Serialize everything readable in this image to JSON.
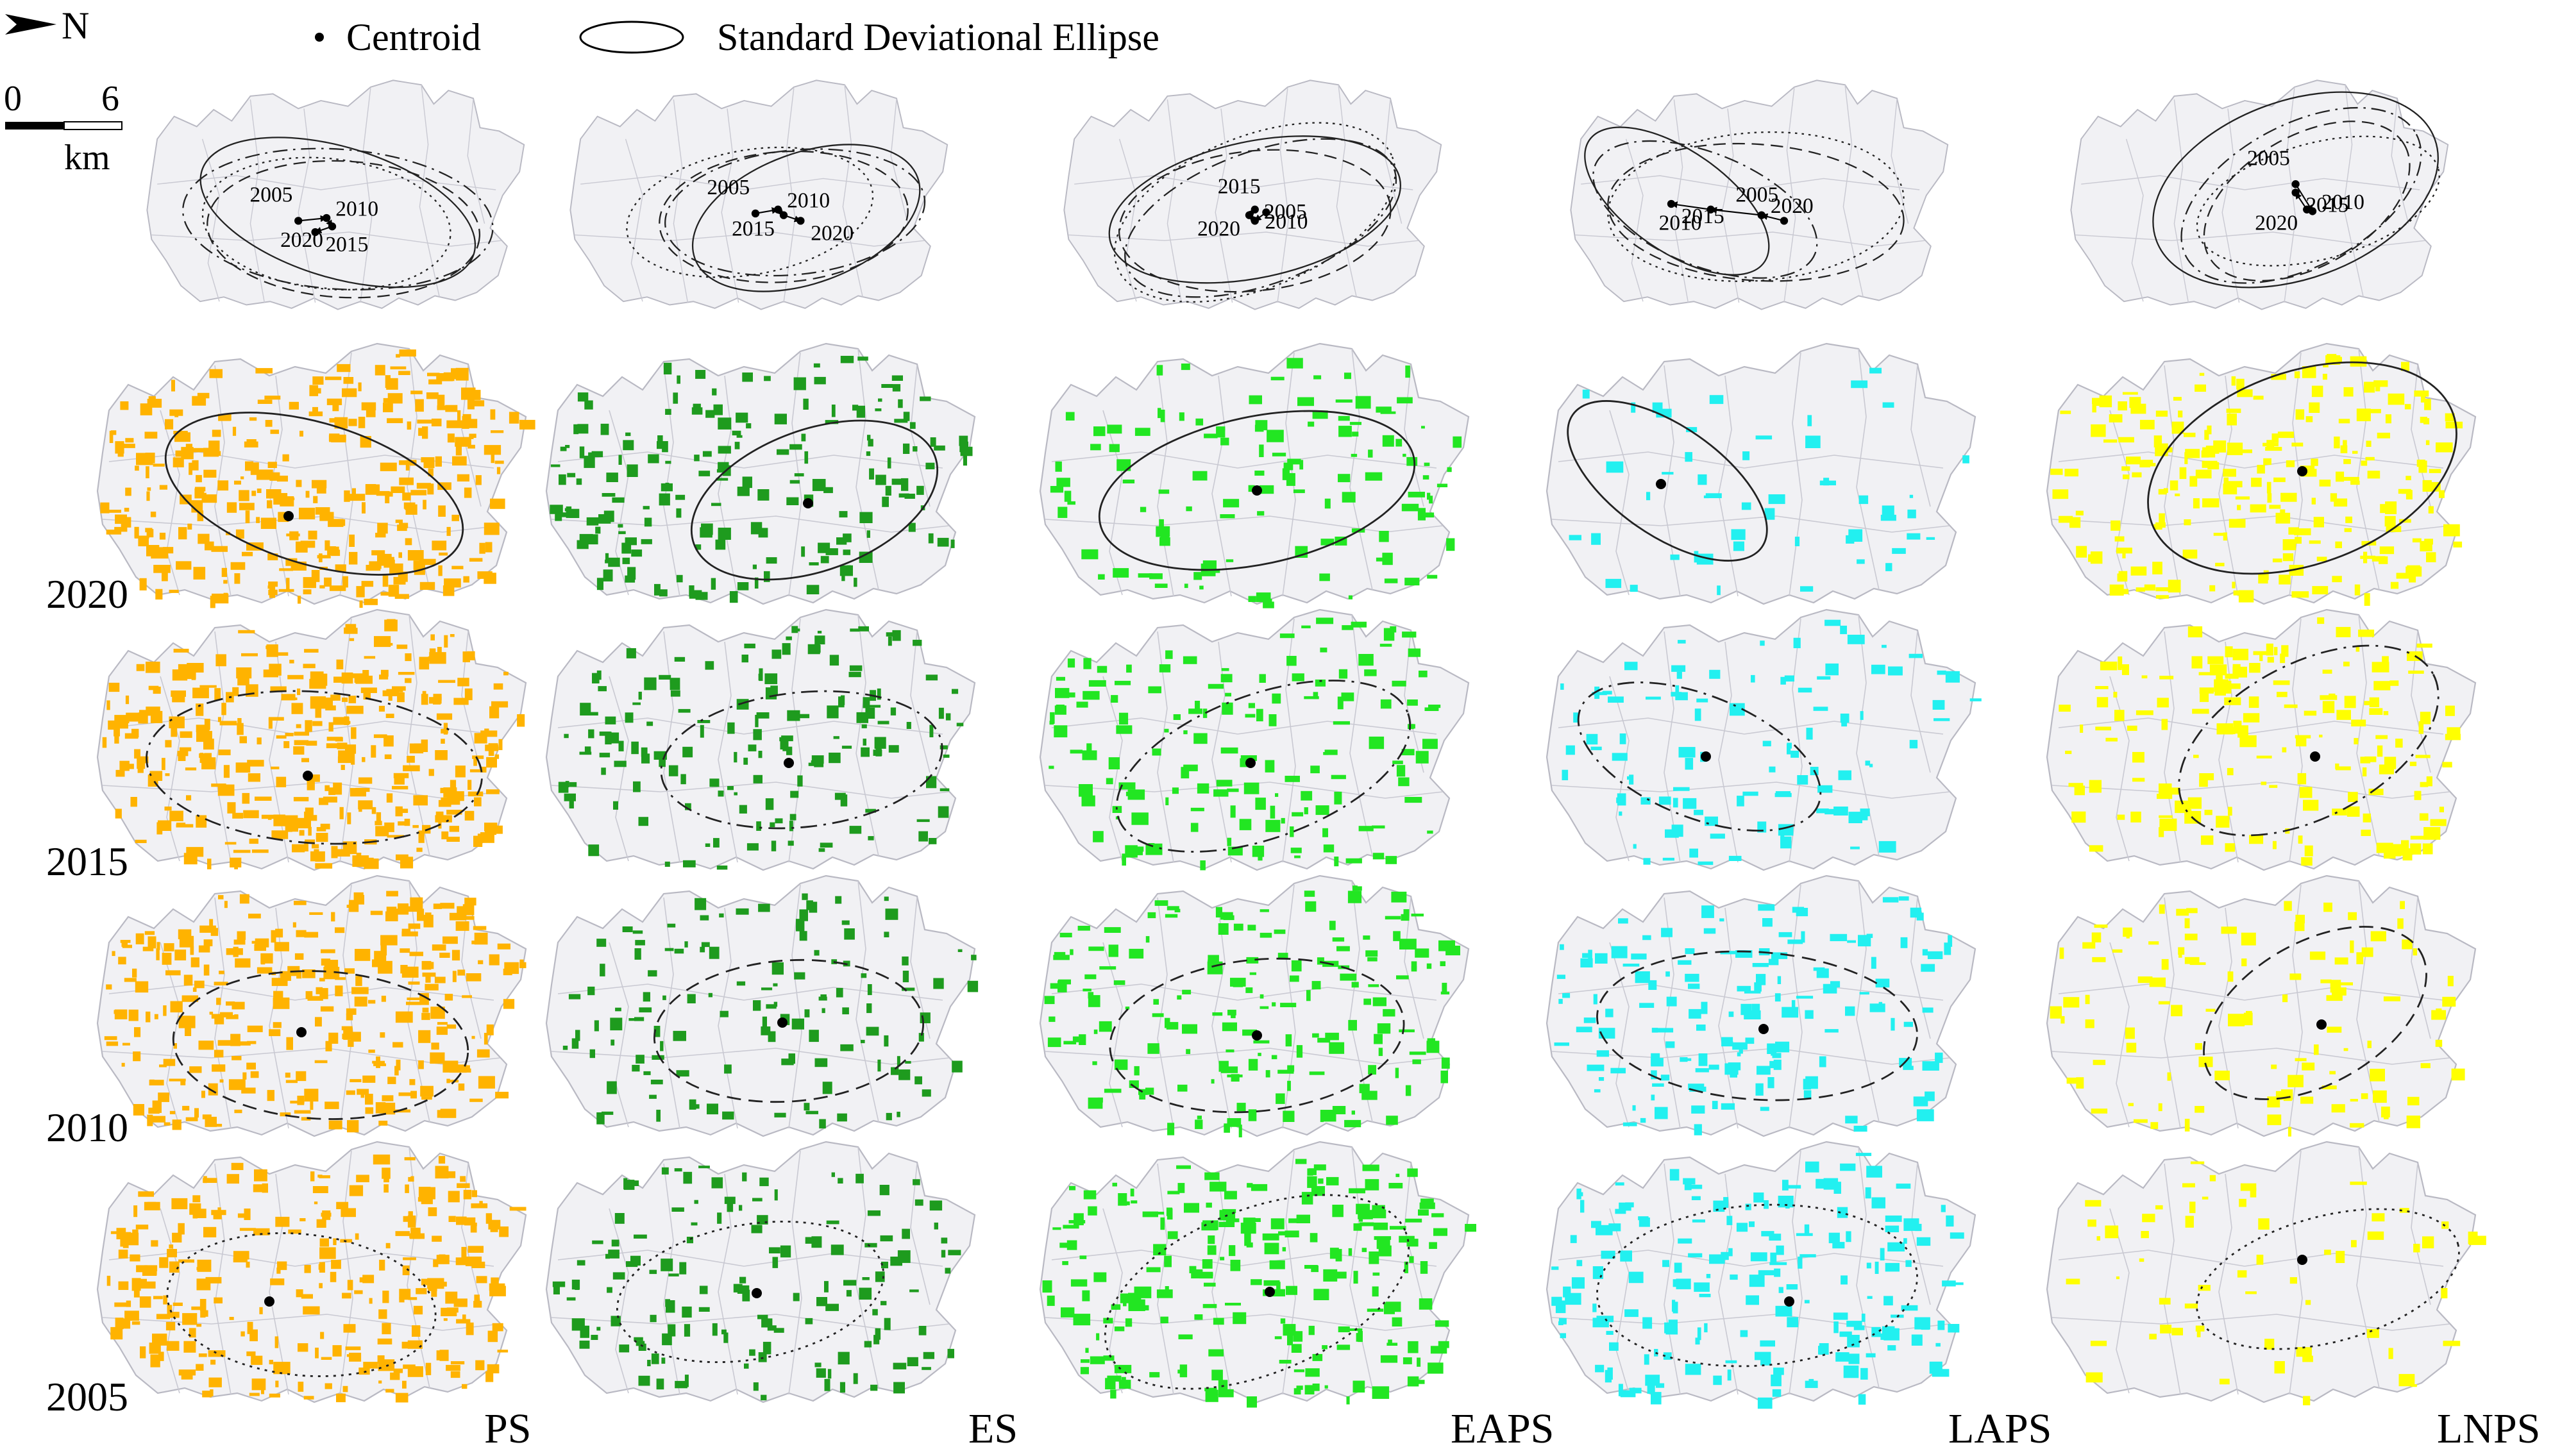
{
  "legend": {
    "north_label": "N",
    "centroid_label": "Centroid",
    "ellipse_label": "Standard Deviational Ellipse",
    "scale_ticks": [
      "0",
      "6"
    ],
    "scale_unit": "km"
  },
  "years": [
    "2020",
    "2015",
    "2010",
    "2005"
  ],
  "overview_labels": {
    "PS": [
      "2005",
      "2010",
      "2020",
      "2015"
    ],
    "ES": [
      "2005",
      "2010",
      "2015",
      "2020"
    ],
    "EAPS": [
      "2015",
      "2005",
      "2020",
      "2010"
    ],
    "LAPS": [
      "2005",
      "2020",
      "2010",
      "2015"
    ],
    "LNPS": [
      "2005",
      "2010",
      "2020",
      "2015"
    ]
  },
  "indicators": [
    {
      "id": "PS",
      "label": "PS",
      "color": "#ffb300"
    },
    {
      "id": "ES",
      "label": "ES",
      "color": "#1e9b1e"
    },
    {
      "id": "EAPS",
      "label": "EAPS",
      "color": "#22e622"
    },
    {
      "id": "LAPS",
      "label": "LAPS",
      "color": "#22f0f0"
    },
    {
      "id": "LNPS",
      "label": "LNPS",
      "color": "#ffff00"
    }
  ],
  "year_line_styles": {
    "2020": "solid",
    "2015": "dash-dot",
    "2010": "dashed",
    "2005": "dotted"
  },
  "patch_density": {
    "PS": {
      "2020": 0.78,
      "2015": 0.82,
      "2010": 0.72,
      "2005": 0.66
    },
    "ES": {
      "2020": 0.45,
      "2015": 0.38,
      "2010": 0.3,
      "2005": 0.34
    },
    "EAPS": {
      "2020": 0.28,
      "2015": 0.36,
      "2010": 0.42,
      "2005": 0.52
    },
    "LAPS": {
      "2020": 0.12,
      "2015": 0.24,
      "2010": 0.36,
      "2005": 0.44
    },
    "LNPS": {
      "2020": 0.55,
      "2015": 0.4,
      "2010": 0.26,
      "2005": 0.14
    }
  }
}
